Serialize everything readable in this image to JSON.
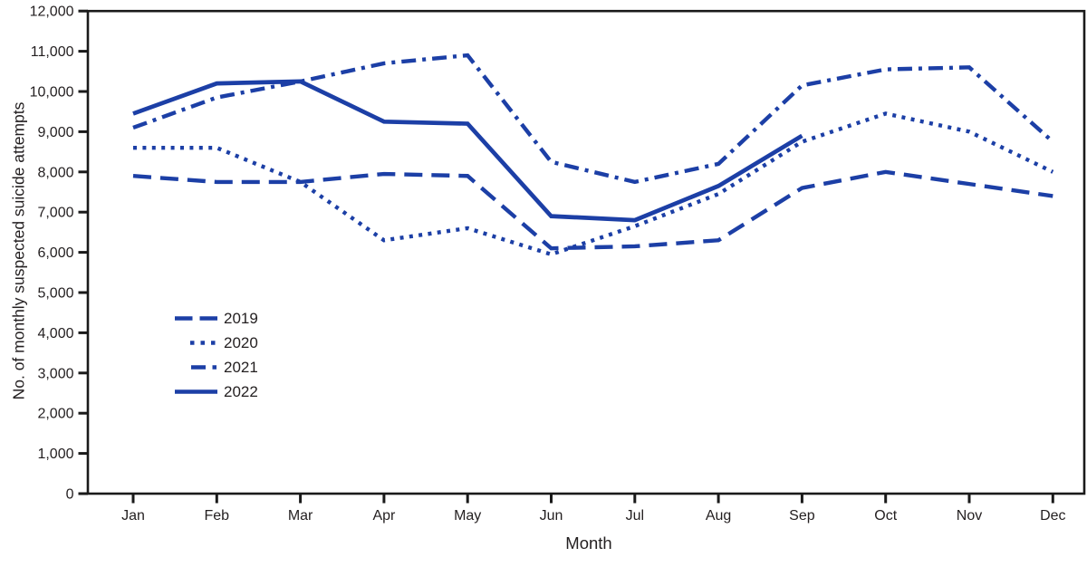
{
  "chart_data": {
    "type": "line",
    "title": "",
    "xlabel": "Month",
    "ylabel": "No. of monthly suspected suicide attempts",
    "categories": [
      "Jan",
      "Feb",
      "Mar",
      "Apr",
      "May",
      "Jun",
      "Jul",
      "Aug",
      "Sep",
      "Oct",
      "Nov",
      "Dec"
    ],
    "ylim": [
      0,
      12000
    ],
    "ytick_interval": 1000,
    "ytick_labels": [
      "0",
      "1,000",
      "2,000",
      "3,000",
      "4,000",
      "5,000",
      "6,000",
      "7,000",
      "8,000",
      "9,000",
      "10,000",
      "11,000",
      "12,000"
    ],
    "grid": false,
    "legend_position": "inside-upper-left",
    "line_color": "#1C3FA6",
    "axis_color": "#1A1A1A",
    "text_color": "#231F20",
    "series": [
      {
        "name": "2019",
        "style": "dashed",
        "values": [
          7900,
          7750,
          7750,
          7950,
          7900,
          6100,
          6150,
          6300,
          7600,
          8000,
          7700,
          7400
        ]
      },
      {
        "name": "2020",
        "style": "dotted",
        "values": [
          8600,
          8600,
          7750,
          6300,
          6600,
          5950,
          6650,
          7450,
          8750,
          9450,
          9000,
          8000
        ]
      },
      {
        "name": "2021",
        "style": "dash-dot",
        "values": [
          9100,
          9850,
          10250,
          10700,
          10900,
          8250,
          7750,
          8200,
          10150,
          10550,
          10600,
          8750
        ]
      },
      {
        "name": "2022",
        "style": "solid",
        "values": [
          9450,
          10200,
          10250,
          9250,
          9200,
          6900,
          6800,
          7650,
          8900,
          null,
          null,
          null
        ]
      }
    ]
  }
}
